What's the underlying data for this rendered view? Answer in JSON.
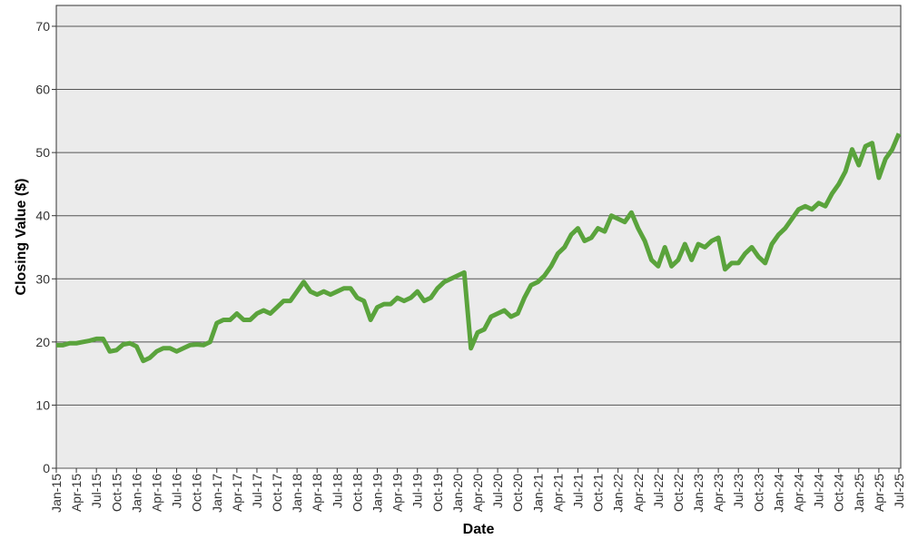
{
  "chart_data": {
    "type": "line",
    "x_label": "Date",
    "y_label": "Closing Value ($)",
    "categories": [
      "Jan-15",
      null,
      null,
      "Apr-15",
      null,
      null,
      "Jul-15",
      null,
      null,
      "Oct-15",
      null,
      null,
      "Jan-16",
      null,
      null,
      "Apr-16",
      null,
      null,
      "Jul-16",
      null,
      null,
      "Oct-16",
      null,
      null,
      "Jan-17",
      null,
      null,
      "Apr-17",
      null,
      null,
      "Jul-17",
      null,
      null,
      "Oct-17",
      null,
      null,
      "Jan-18",
      null,
      null,
      "Apr-18",
      null,
      null,
      "Jul-18",
      null,
      null,
      "Oct-18",
      null,
      null,
      "Jan-19",
      null,
      null,
      "Apr-19",
      null,
      null,
      "Jul-19",
      null,
      null,
      "Oct-19",
      null,
      null,
      "Jan-20",
      null,
      null,
      "Apr-20",
      null,
      null,
      "Jul-20",
      null,
      null,
      "Oct-20",
      null,
      null,
      "Jan-21",
      null,
      null,
      "Apr-21",
      null,
      null,
      "Jul-21",
      null,
      null,
      "Oct-21",
      null,
      null,
      "Jan-22",
      null,
      null,
      "Apr-22",
      null,
      null,
      "Jul-22",
      null,
      null,
      "Oct-22",
      null,
      null,
      "Jan-23",
      null,
      null,
      "Apr-23",
      null,
      null,
      "Jul-23",
      null,
      null,
      "Oct-23",
      null,
      null,
      "Jan-24",
      null,
      null,
      "Apr-24",
      null,
      null,
      "Jul-24",
      null,
      null,
      "Oct-24",
      null,
      null,
      "Jan-25",
      null,
      null,
      "Apr-25",
      null,
      null,
      "Jul-25"
    ],
    "series": [
      {
        "name": "Closing Value",
        "color": "#5aa33c",
        "values": [
          19.5,
          19.5,
          19.8,
          19.8,
          20,
          20.2,
          20.5,
          20.5,
          18.5,
          18.7,
          19.6,
          19.8,
          19.3,
          17,
          17.5,
          18.5,
          19,
          19,
          18.5,
          19,
          19.5,
          19.6,
          19.5,
          20,
          23,
          23.5,
          23.5,
          24.5,
          23.5,
          23.5,
          24.5,
          25,
          24.5,
          25.5,
          26.5,
          26.5,
          28,
          29.5,
          28,
          27.5,
          28,
          27.5,
          28,
          28.5,
          28.5,
          27,
          26.5,
          23.5,
          25.5,
          26,
          26,
          27,
          26.5,
          27,
          28,
          26.5,
          27,
          28.5,
          29.5,
          30,
          30.5,
          31,
          19,
          21.5,
          22,
          24,
          24.5,
          25,
          24,
          24.5,
          27,
          29,
          29.5,
          30.5,
          32,
          34,
          35,
          37,
          38,
          36,
          36.5,
          38,
          37.5,
          40,
          39.5,
          39,
          40.5,
          38,
          36,
          33,
          32,
          35,
          32,
          33,
          35.5,
          33,
          35.5,
          35,
          36,
          36.5,
          31.5,
          32.5,
          32.5,
          34,
          35,
          33.5,
          32.5,
          35.5,
          37,
          38,
          39.5,
          41,
          41.5,
          41,
          42,
          41.5,
          43.5,
          45,
          47,
          50.5,
          48,
          51,
          51.5,
          46,
          49,
          50.5,
          53
        ]
      }
    ],
    "ylim": [
      0,
      73.3
    ],
    "yticks": [
      0,
      10,
      20,
      30,
      40,
      50,
      60,
      70
    ],
    "grid": true
  }
}
